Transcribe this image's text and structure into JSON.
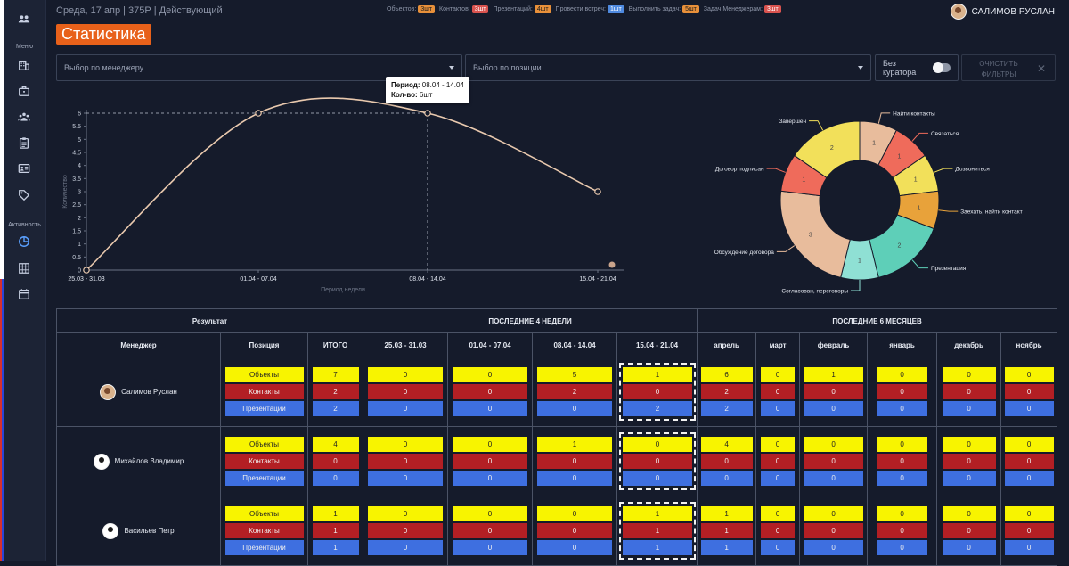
{
  "sidebar": {
    "menu_label": "Меню",
    "activity_label": "Активность"
  },
  "topbar": {
    "info": "Среда, 17 апр | 375Р | Действующий",
    "stats": [
      {
        "label": "Объектов:",
        "value": "3шт",
        "color": "#e8903a"
      },
      {
        "label": "Контактов:",
        "value": "3шт",
        "color": "#d9534f"
      },
      {
        "label": "Презентаций:",
        "value": "4шт",
        "color": "#e8903a"
      },
      {
        "label": "Провести встреч:",
        "value": "1шт",
        "color": "#4f8ae0"
      },
      {
        "label": "Выполнить задач:",
        "value": "5шт",
        "color": "#e8903a"
      },
      {
        "label": "Задач Менеджерам:",
        "value": "3шт",
        "color": "#d9534f"
      }
    ],
    "user_name": "САЛИМОВ РУСЛАН"
  },
  "page_title": "Статистика",
  "filters": {
    "manager_placeholder": "Выбор по менеджеру",
    "position_placeholder": "Выбор по позиции",
    "no_curator_label": "Без куратора",
    "clear_label": "ОЧИСТИТЬ ФИЛЬТРЫ",
    "clear_icon": "close-icon"
  },
  "tooltip": {
    "period_label": "Период:",
    "period_value": "08.04 - 14.04",
    "count_label": "Кол-во:",
    "count_value": "6шт"
  },
  "chart_data": [
    {
      "type": "line",
      "xlabel": "Период недели",
      "ylabel": "Количество",
      "categories": [
        "25.03 - 31.03",
        "01.04 - 07.04",
        "08.04 - 14.04",
        "15.04 - 21.04"
      ],
      "values": [
        0,
        6,
        6,
        3
      ],
      "yticks": [
        0,
        0.5,
        1,
        1.5,
        2,
        2.5,
        3,
        3.5,
        4,
        4.5,
        5,
        5.5,
        6
      ],
      "ylim": [
        0,
        6
      ],
      "line_color": "#e9c9ae"
    },
    {
      "type": "pie",
      "labels": [
        "Найти контакты",
        "Связаться",
        "Дозвониться",
        "Заехать, найти контакт",
        "Презентация",
        "Согласован, переговоры",
        "Обсуждение договора",
        "Договор подписан",
        "Завершен"
      ],
      "values": [
        1,
        1,
        1,
        1,
        2,
        1,
        3,
        1,
        2
      ],
      "colors": [
        "#e8bc9c",
        "#ef6b5b",
        "#f2e05a",
        "#e8a23a",
        "#5ecfb8",
        "#8fe0d4",
        "#e8bc9c",
        "#ef6b5b",
        "#f2e05a"
      ]
    }
  ],
  "table": {
    "group_headers": [
      "Результат",
      "ПОСЛЕДНИЕ 4 НЕДЕЛИ",
      "ПОСЛЕДНИЕ 6 МЕСЯЦЕВ"
    ],
    "col_headers": [
      "Менеджер",
      "Позиция",
      "ИТОГО",
      "25.03 - 31.03",
      "01.04 - 07.04",
      "08.04 - 14.04",
      "15.04 - 21.04",
      "апрель",
      "март",
      "февраль",
      "январь",
      "декабрь",
      "ноябрь"
    ],
    "row_labels": [
      "Объекты",
      "Контакты",
      "Презентации"
    ],
    "managers": [
      {
        "name": "Салимов Руслан",
        "rows": [
          [
            "7",
            "0",
            "0",
            "5",
            "1",
            "6",
            "0",
            "1",
            "0",
            "0",
            "0"
          ],
          [
            "2",
            "0",
            "0",
            "2",
            "0",
            "2",
            "0",
            "0",
            "0",
            "0",
            "0"
          ],
          [
            "2",
            "0",
            "0",
            "0",
            "2",
            "2",
            "0",
            "0",
            "0",
            "0",
            "0"
          ]
        ]
      },
      {
        "name": "Михайлов Владимир",
        "rows": [
          [
            "4",
            "0",
            "0",
            "1",
            "0",
            "4",
            "0",
            "0",
            "0",
            "0",
            "0"
          ],
          [
            "0",
            "0",
            "0",
            "0",
            "0",
            "0",
            "0",
            "0",
            "0",
            "0",
            "0"
          ],
          [
            "0",
            "0",
            "0",
            "0",
            "0",
            "0",
            "0",
            "0",
            "0",
            "0",
            "0"
          ]
        ]
      },
      {
        "name": "Васильев Петр",
        "rows": [
          [
            "1",
            "0",
            "0",
            "0",
            "1",
            "1",
            "0",
            "0",
            "0",
            "0",
            "0"
          ],
          [
            "1",
            "0",
            "0",
            "0",
            "1",
            "1",
            "0",
            "0",
            "0",
            "0",
            "0"
          ],
          [
            "1",
            "0",
            "0",
            "0",
            "1",
            "1",
            "0",
            "0",
            "0",
            "0",
            "0"
          ]
        ]
      }
    ]
  }
}
